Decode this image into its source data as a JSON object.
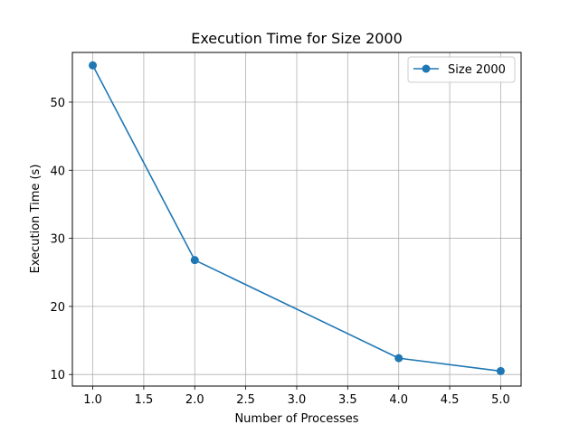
{
  "chart_data": {
    "type": "line",
    "title": "Execution Time for Size 2000",
    "xlabel": "Number of Processes",
    "ylabel": "Execution Time (s)",
    "xlim": [
      0.8,
      5.2
    ],
    "ylim": [
      8.3,
      57.3
    ],
    "xticks": [
      1.0,
      1.5,
      2.0,
      2.5,
      3.0,
      3.5,
      4.0,
      4.5,
      5.0
    ],
    "xtick_labels": [
      "1.0",
      "1.5",
      "2.0",
      "2.5",
      "3.0",
      "3.5",
      "4.0",
      "4.5",
      "5.0"
    ],
    "yticks": [
      10,
      20,
      30,
      40,
      50
    ],
    "ytick_labels": [
      "10",
      "20",
      "30",
      "40",
      "50"
    ],
    "grid": true,
    "legend_position": "top-right",
    "series": [
      {
        "name": "Size 2000",
        "color": "#1f77b4",
        "marker": "circle",
        "x": [
          1,
          2,
          4,
          5
        ],
        "y": [
          55.4,
          26.8,
          12.4,
          10.5
        ]
      }
    ]
  }
}
